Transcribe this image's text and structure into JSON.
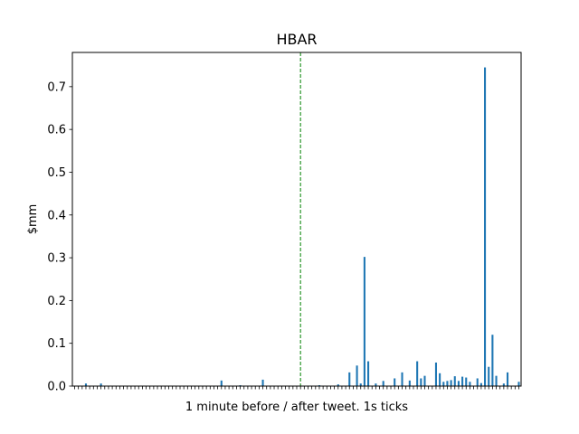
{
  "chart_data": {
    "type": "bar",
    "title": "HBAR",
    "xlabel": "1 minute before / after tweet. 1s ticks",
    "ylabel": "$mm",
    "ylim": [
      0,
      0.78
    ],
    "yticks": [
      "0.0",
      "0.1",
      "0.2",
      "0.3",
      "0.4",
      "0.5",
      "0.6",
      "0.7"
    ],
    "tweet_index": 60,
    "colors": {
      "bar": "#1f77b4",
      "marker": "#008000"
    },
    "values": [
      0,
      0,
      0,
      0.006,
      0,
      0,
      0,
      0.006,
      0,
      0,
      0,
      0,
      0,
      0,
      0,
      0,
      0,
      0,
      0,
      0,
      0,
      0,
      0,
      0,
      0,
      0,
      0,
      0,
      0,
      0,
      0,
      0,
      0,
      0,
      0,
      0,
      0,
      0,
      0,
      0.013,
      0,
      0,
      0,
      0,
      0.002,
      0,
      0,
      0,
      0,
      0,
      0.015,
      0,
      0,
      0,
      0,
      0,
      0,
      0,
      0,
      0,
      0,
      0,
      0,
      0,
      0,
      0.002,
      0,
      0,
      0,
      0,
      0.004,
      0,
      0,
      0.032,
      0,
      0.048,
      0.006,
      0.302,
      0.058,
      0,
      0.006,
      0,
      0.012,
      0,
      0,
      0.018,
      0,
      0.032,
      0,
      0.013,
      0,
      0.058,
      0.018,
      0.024,
      0,
      0,
      0.055,
      0.03,
      0.01,
      0.012,
      0.014,
      0.023,
      0.012,
      0.022,
      0.02,
      0.01,
      0,
      0.018,
      0.007,
      0.745,
      0.045,
      0.12,
      0.024,
      0,
      0.006,
      0.032,
      0,
      0,
      0.01
    ]
  }
}
